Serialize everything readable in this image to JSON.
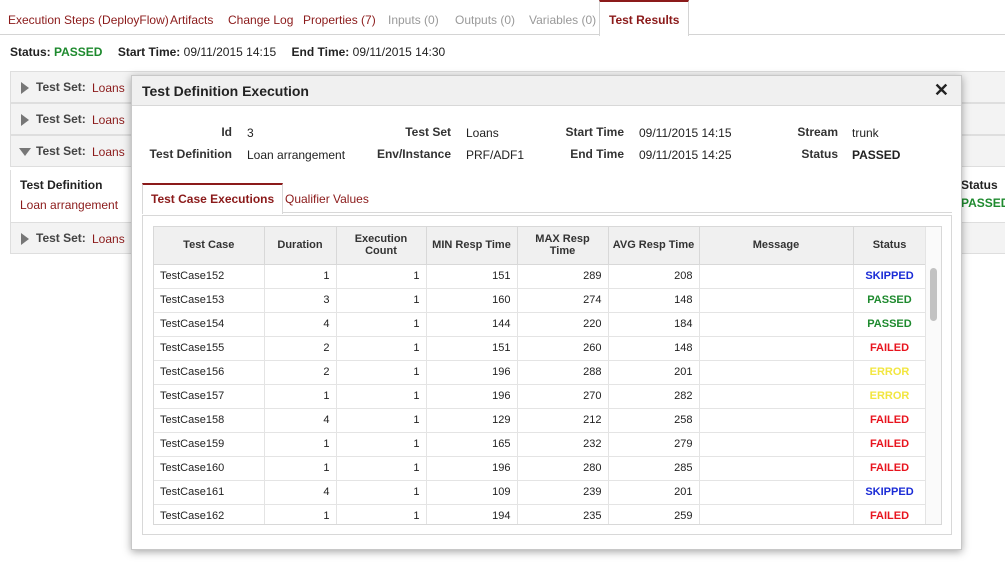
{
  "tabs": [
    {
      "label": "Execution Steps (DeployFlow)",
      "state": "normal"
    },
    {
      "label": "Artifacts",
      "state": "normal"
    },
    {
      "label": "Change Log",
      "state": "normal"
    },
    {
      "label": "Properties (7)",
      "state": "normal"
    },
    {
      "label": "Inputs (0)",
      "state": "disabled"
    },
    {
      "label": "Outputs (0)",
      "state": "disabled"
    },
    {
      "label": "Variables (0)",
      "state": "disabled"
    },
    {
      "label": "Test Results",
      "state": "active"
    }
  ],
  "summary": {
    "status_label": "Status:",
    "status_value": "PASSED",
    "start_label": "Start Time:",
    "start_value": "09/11/2015 14:15",
    "end_label": "End Time:",
    "end_value": "09/11/2015 14:30"
  },
  "test_sets": [
    {
      "label": "Test Set:",
      "name": "Loans",
      "expanded": false
    },
    {
      "label": "Test Set:",
      "name": "Loans",
      "expanded": false
    },
    {
      "label": "Test Set:",
      "name": "Loans",
      "expanded": true
    },
    {
      "label": "Test Set:",
      "name": "Loans",
      "expanded": false
    }
  ],
  "bg_detail": {
    "def_header": "Test Definition",
    "def_value": "Loan arrangement",
    "status_header": "Status",
    "status_value": "PASSED"
  },
  "modal": {
    "title": "Test Definition Execution",
    "close_glyph": "✕",
    "fields": {
      "id_label": "Id",
      "id_value": "3",
      "testdef_label": "Test Definition",
      "testdef_value": "Loan arrangement",
      "testset_label": "Test Set",
      "testset_value": "Loans",
      "env_label": "Env/Instance",
      "env_value": "PRF/ADF1",
      "start_label": "Start Time",
      "start_value": "09/11/2015 14:15",
      "end_label": "End Time",
      "end_value": "09/11/2015 14:25",
      "stream_label": "Stream",
      "stream_value": "trunk",
      "status_label": "Status",
      "status_value": "PASSED"
    },
    "subtabs": [
      "Test Case Executions",
      "Qualifier Values"
    ],
    "table": {
      "headers": [
        "Test Case",
        "Duration",
        "Execution Count",
        "MIN Resp Time",
        "MAX Resp Time",
        "AVG Resp Time",
        "Message",
        "Status"
      ],
      "rows": [
        {
          "case": "TestCase152",
          "duration": "1",
          "count": "1",
          "min": "151",
          "max": "289",
          "avg": "208",
          "message": "",
          "status": "SKIPPED"
        },
        {
          "case": "TestCase153",
          "duration": "3",
          "count": "1",
          "min": "160",
          "max": "274",
          "avg": "148",
          "message": "",
          "status": "PASSED"
        },
        {
          "case": "TestCase154",
          "duration": "4",
          "count": "1",
          "min": "144",
          "max": "220",
          "avg": "184",
          "message": "",
          "status": "PASSED"
        },
        {
          "case": "TestCase155",
          "duration": "2",
          "count": "1",
          "min": "151",
          "max": "260",
          "avg": "148",
          "message": "",
          "status": "FAILED"
        },
        {
          "case": "TestCase156",
          "duration": "2",
          "count": "1",
          "min": "196",
          "max": "288",
          "avg": "201",
          "message": "",
          "status": "ERROR"
        },
        {
          "case": "TestCase157",
          "duration": "1",
          "count": "1",
          "min": "196",
          "max": "270",
          "avg": "282",
          "message": "",
          "status": "ERROR"
        },
        {
          "case": "TestCase158",
          "duration": "4",
          "count": "1",
          "min": "129",
          "max": "212",
          "avg": "258",
          "message": "",
          "status": "FAILED"
        },
        {
          "case": "TestCase159",
          "duration": "1",
          "count": "1",
          "min": "165",
          "max": "232",
          "avg": "279",
          "message": "",
          "status": "FAILED"
        },
        {
          "case": "TestCase160",
          "duration": "1",
          "count": "1",
          "min": "196",
          "max": "280",
          "avg": "285",
          "message": "",
          "status": "FAILED"
        },
        {
          "case": "TestCase161",
          "duration": "4",
          "count": "1",
          "min": "109",
          "max": "239",
          "avg": "201",
          "message": "",
          "status": "SKIPPED"
        },
        {
          "case": "TestCase162",
          "duration": "1",
          "count": "1",
          "min": "194",
          "max": "235",
          "avg": "259",
          "message": "",
          "status": "FAILED"
        }
      ]
    }
  },
  "colors": {
    "accent": "#8b1a1a",
    "PASSED": "#1e8a2e",
    "FAILED": "#e8141e",
    "SKIPPED": "#1a2bd6",
    "ERROR": "#f2e640"
  }
}
